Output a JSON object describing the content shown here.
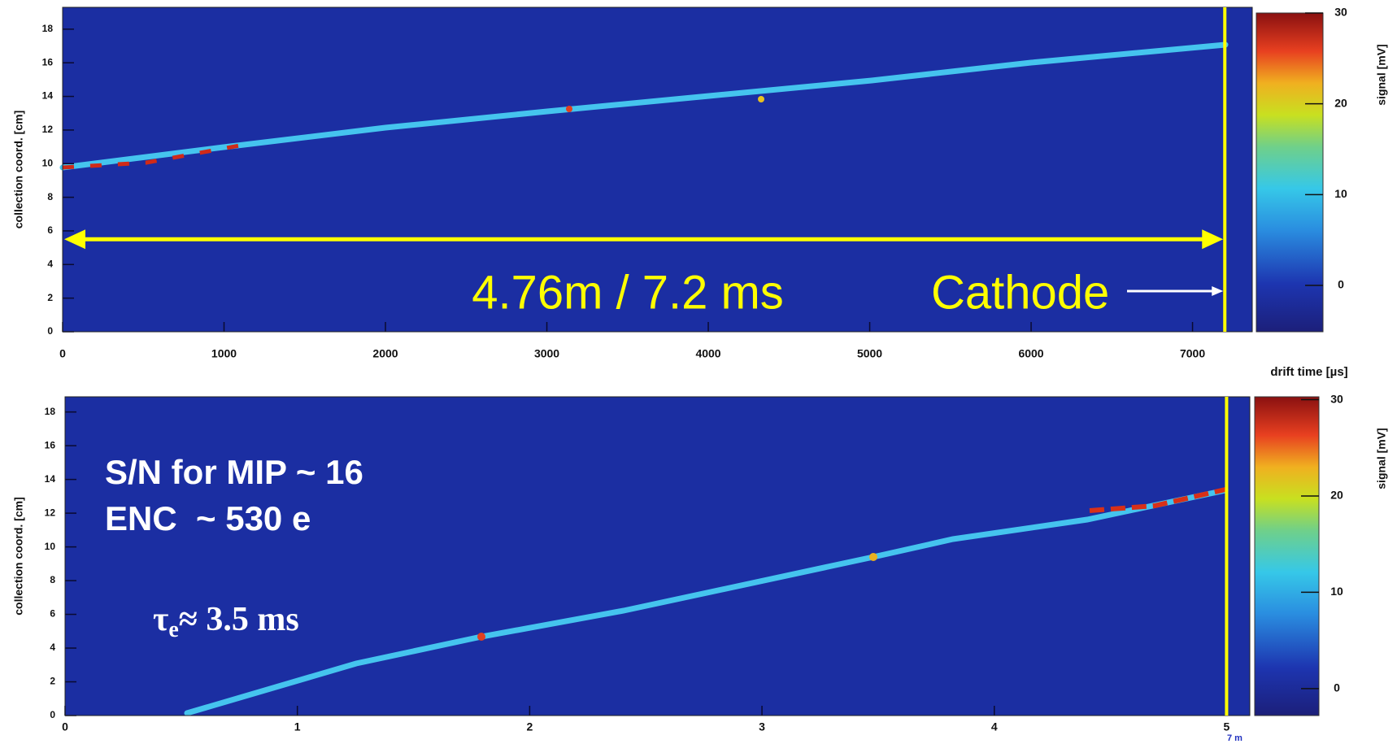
{
  "chart_data": [
    {
      "type": "heatmap",
      "ylabel": "collection coord. [cm]",
      "xlabel": "drift time [µs]",
      "xlim": [
        0,
        7370
      ],
      "xticks": [
        0,
        1000,
        2000,
        3000,
        4000,
        5000,
        6000,
        7000
      ],
      "ylim": [
        0,
        19.3
      ],
      "yticks": [
        0,
        2,
        4,
        6,
        8,
        10,
        12,
        14,
        16,
        18
      ],
      "colorbar": {
        "label": "signal [mV]",
        "lim": [
          -5.1,
          30
        ],
        "ticks": [
          0,
          10,
          20,
          30
        ]
      },
      "cathode_x": 7200,
      "arrow_y": 5.5,
      "annotations": [
        "4.76m / 7.2 ms",
        "Cathode"
      ]
    },
    {
      "type": "heatmap",
      "ylabel": "collection coord. [cm]",
      "xlabel": "7 m",
      "xlim": [
        0,
        5.1
      ],
      "xticks": [
        0,
        1,
        2,
        3,
        4,
        5
      ],
      "xtick_color": "#e02020",
      "ylim": [
        0,
        18.9
      ],
      "yticks": [
        0,
        2,
        4,
        6,
        8,
        10,
        12,
        14,
        16,
        18
      ],
      "colorbar": {
        "label": "signal [mV]",
        "lim": [
          -2.8,
          30.3
        ],
        "ticks": [
          0,
          10,
          20,
          30
        ]
      },
      "cathode_x": 5,
      "annotations": [
        "S/N for MIP ~ 16",
        "ENC  ~ 530 e"
      ],
      "tau": {
        "symbol": "τ",
        "subscript": "e",
        "text": "≈ 3.5 ms"
      }
    }
  ]
}
